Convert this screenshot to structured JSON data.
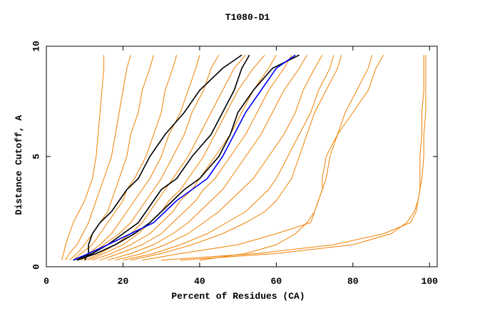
{
  "chart_data": {
    "type": "line",
    "title": "T1080-D1",
    "x_label": "Percent of Residues (CA)",
    "y_label": "Distance Cutoff, A",
    "xlim": [
      0,
      102
    ],
    "ylim": [
      0,
      10
    ],
    "xticks": [
      0,
      20,
      40,
      60,
      80,
      100
    ],
    "yticks": [
      0,
      5,
      10
    ],
    "y": [
      0.3,
      0.6,
      1,
      1.5,
      2,
      2.5,
      3,
      3.5,
      4,
      5,
      6,
      7,
      8,
      9,
      9.6
    ],
    "series": [
      {
        "color": "#f08000",
        "x": [
          4,
          4.5,
          5,
          6,
          7,
          8.5,
          10,
          11,
          12,
          13,
          13.5,
          14,
          14.5,
          15,
          15
        ]
      },
      {
        "color": "#f08000",
        "x": [
          5,
          6,
          8,
          9.5,
          11,
          12,
          13,
          14,
          15,
          17,
          18,
          19,
          20,
          21,
          22
        ]
      },
      {
        "color": "#f08000",
        "x": [
          6,
          8,
          10,
          12,
          14,
          16,
          17,
          18,
          19,
          21,
          22,
          24,
          25,
          27,
          28
        ]
      },
      {
        "color": "#f08000",
        "x": [
          7,
          9,
          12,
          14,
          16,
          18,
          20,
          21,
          23,
          26,
          28,
          30,
          31,
          33,
          34
        ]
      },
      {
        "color": "#f08000",
        "x": [
          8,
          11,
          14,
          17,
          19,
          21,
          23,
          25,
          27,
          30,
          32,
          35,
          37,
          39,
          40
        ]
      },
      {
        "color": "#f08000",
        "x": [
          9,
          12,
          15,
          19,
          22,
          24,
          26,
          28,
          30,
          33,
          36,
          38,
          41,
          43,
          45
        ]
      },
      {
        "color": "#f08000",
        "x": [
          10,
          14,
          18,
          22,
          25,
          27,
          29,
          31,
          33,
          37,
          40,
          43,
          46,
          49,
          52
        ]
      },
      {
        "color": "#f08000",
        "x": [
          11,
          15,
          20,
          24,
          27,
          30,
          32,
          35,
          37,
          41,
          44,
          47,
          50,
          54,
          57
        ]
      },
      {
        "color": "#f08000",
        "x": [
          12,
          17,
          22,
          27,
          30,
          33,
          35,
          38,
          40,
          44,
          48,
          51,
          54,
          58,
          60
        ]
      },
      {
        "color": "#f08000",
        "x": [
          14,
          19,
          25,
          30,
          33,
          36,
          39,
          41,
          44,
          48,
          52,
          55,
          58,
          62,
          64
        ]
      },
      {
        "color": "#f08000",
        "x": [
          16,
          22,
          28,
          33,
          37,
          40,
          43,
          46,
          48,
          52,
          56,
          59,
          62,
          66,
          68
        ]
      },
      {
        "color": "#f08000",
        "x": [
          18,
          25,
          31,
          37,
          41,
          45,
          48,
          51,
          54,
          58,
          62,
          65,
          67,
          70,
          72
        ]
      },
      {
        "color": "#f08000",
        "x": [
          20,
          28,
          35,
          42,
          47,
          52,
          55,
          58,
          60,
          63,
          66,
          69,
          71,
          74,
          75
        ]
      },
      {
        "color": "#f08000",
        "x": [
          22,
          30,
          38,
          46,
          52,
          57,
          60,
          62,
          64,
          66,
          68,
          70,
          73,
          76,
          77
        ]
      },
      {
        "color": "#f08000",
        "x": [
          25,
          35,
          50,
          60,
          69,
          70,
          71,
          72,
          72,
          73,
          76,
          80,
          84,
          86,
          88
        ]
      },
      {
        "color": "#f08000",
        "x": [
          40,
          52,
          60,
          65,
          68,
          70,
          71,
          72,
          73,
          74,
          76,
          78,
          81,
          84,
          85
        ]
      },
      {
        "color": "#f08000",
        "x": [
          30,
          55,
          75,
          88,
          95,
          96.5,
          97,
          97.5,
          97.5,
          97.5,
          98,
          98,
          98.5,
          98.5,
          98.5
        ]
      },
      {
        "color": "#f08000",
        "x": [
          35,
          60,
          80,
          90,
          94,
          96,
          97,
          97.5,
          98,
          98.5,
          98.5,
          99,
          99,
          99,
          99
        ]
      },
      {
        "color": "#000000",
        "x": [
          10,
          11,
          11,
          12,
          14,
          17,
          19,
          21,
          24,
          27,
          31,
          36,
          40,
          46,
          51
        ]
      },
      {
        "color": "#000000",
        "x": [
          7,
          12,
          16,
          20,
          24,
          26,
          28,
          30,
          34,
          38,
          43,
          46,
          49,
          51,
          53
        ]
      },
      {
        "color": "#000000",
        "x": [
          8,
          13,
          18,
          23,
          27,
          30,
          33,
          36,
          40,
          45,
          48,
          50,
          54,
          59,
          66
        ]
      },
      {
        "color": "#0000ff",
        "x": [
          7,
          11,
          16,
          22,
          28,
          31,
          34,
          38,
          42,
          46,
          49,
          52,
          56,
          60,
          65
        ]
      }
    ]
  }
}
